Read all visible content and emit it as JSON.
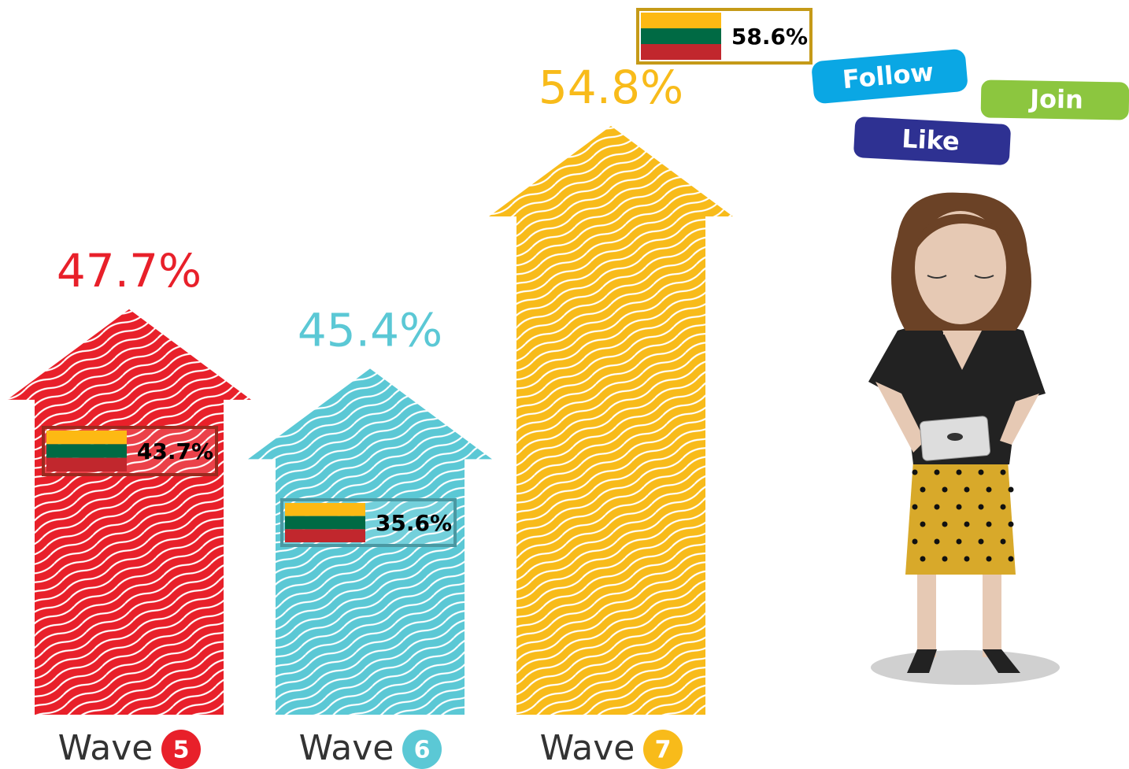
{
  "chart_data": {
    "type": "arrow",
    "category_prefix": "Wave",
    "categories": [
      "5",
      "6",
      "7"
    ],
    "values": [
      47.7,
      45.4,
      54.8
    ],
    "value_labels": [
      "47.7%",
      "45.4%",
      "54.8%"
    ],
    "colors": [
      "#e8202a",
      "#5bc8d5",
      "#f8bb1a"
    ],
    "reference": {
      "values": [
        43.7,
        35.6,
        58.6
      ],
      "value_labels": [
        "43.7%",
        "35.6%",
        "58.6%"
      ]
    },
    "ylim": [
      32,
      58
    ]
  },
  "buttons": [
    "Follow",
    "Join",
    "Like"
  ]
}
